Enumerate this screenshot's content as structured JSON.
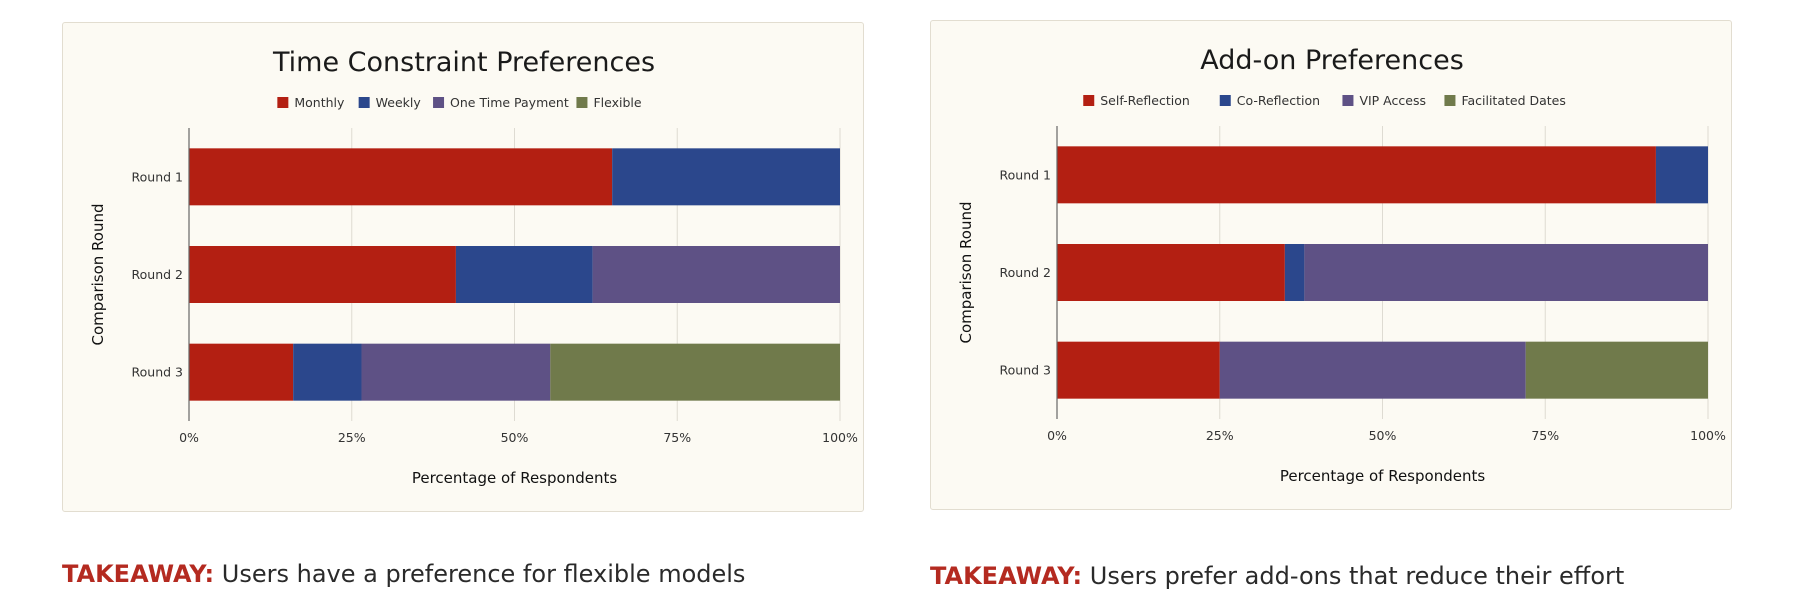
{
  "colors": {
    "red": "#b31f12",
    "blue": "#2b478c",
    "purple": "#5e5185",
    "olive": "#707a4b",
    "panel_bg": "#fcfaf3",
    "takeaway_label": "#b42a20"
  },
  "chart_data": [
    {
      "type": "bar",
      "orientation": "horizontal",
      "stacked": true,
      "title": "Time Constraint Preferences",
      "xlabel": "Percentage of Respondents",
      "ylabel": "Comparison Round",
      "categories": [
        "Round 1",
        "Round 2",
        "Round 3"
      ],
      "xlim": [
        0,
        100
      ],
      "xticks": [
        "0%",
        "25%",
        "50%",
        "75%",
        "100%"
      ],
      "grid": true,
      "legend_position": "top",
      "series": [
        {
          "name": "Monthly",
          "color": "#b31f12",
          "values": [
            65,
            41,
            16
          ]
        },
        {
          "name": "Weekly",
          "color": "#2b478c",
          "values": [
            35,
            21,
            10.5
          ]
        },
        {
          "name": "One Time Payment",
          "color": "#5e5185",
          "values": [
            0,
            38,
            29
          ]
        },
        {
          "name": "Flexible",
          "color": "#707a4b",
          "values": [
            0,
            0,
            44.5
          ]
        }
      ]
    },
    {
      "type": "bar",
      "orientation": "horizontal",
      "stacked": true,
      "title": "Add-on Preferences",
      "xlabel": "Percentage of Respondents",
      "ylabel": "Comparison Round",
      "categories": [
        "Round 1",
        "Round 2",
        "Round 3"
      ],
      "xlim": [
        0,
        100
      ],
      "xticks": [
        "0%",
        "25%",
        "50%",
        "75%",
        "100%"
      ],
      "grid": true,
      "legend_position": "top",
      "series": [
        {
          "name": "Self-Reflection",
          "color": "#b31f12",
          "values": [
            92,
            35,
            25
          ]
        },
        {
          "name": "Co-Reflection",
          "color": "#2b478c",
          "values": [
            8,
            3,
            0
          ]
        },
        {
          "name": "VIP Access",
          "color": "#5e5185",
          "values": [
            0,
            62,
            47
          ]
        },
        {
          "name": "Facilitated Dates",
          "color": "#707a4b",
          "values": [
            0,
            0,
            28
          ]
        }
      ]
    }
  ],
  "takeaways": {
    "left": {
      "label": "TAKEAWAY:",
      "text": "Users have a preference for flexible models"
    },
    "right": {
      "label": "TAKEAWAY:",
      "text": "Users prefer add-ons that reduce their effort"
    }
  }
}
